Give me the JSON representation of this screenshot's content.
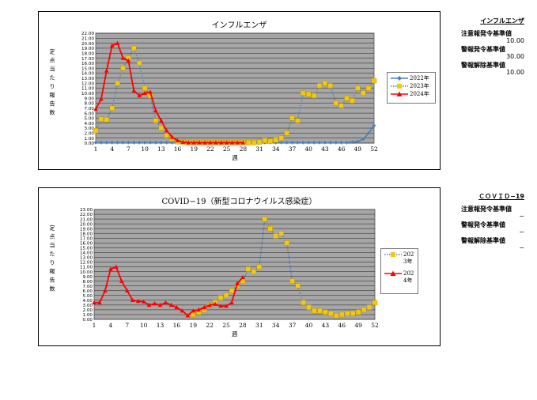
{
  "chart_data": [
    {
      "type": "line",
      "title": "インフルエンザ",
      "xlabel": "週",
      "ylabel": "定点当たり報告数",
      "xlim": [
        1,
        52
      ],
      "ylim": [
        0,
        22
      ],
      "x_ticks": [
        "1",
        "4",
        "7",
        "10",
        "13",
        "16",
        "19",
        "22",
        "25",
        "28",
        "31",
        "34",
        "37",
        "40",
        "43",
        "46",
        "49",
        "52"
      ],
      "y_ticks": [
        "0.00",
        "1.00",
        "2.00",
        "3.00",
        "4.00",
        "5.00",
        "6.00",
        "7.00",
        "8.00",
        "9.00",
        "10.00",
        "11.00",
        "12.00",
        "13.00",
        "14.00",
        "15.00",
        "16.00",
        "17.00",
        "18.00",
        "19.00",
        "20.00",
        "21.00",
        "22.00"
      ],
      "grid": true,
      "legend_position": "right",
      "series": [
        {
          "name": "2022年",
          "color": "#4f81bd",
          "style": "solid",
          "marker": "diamond",
          "values": [
            0.1,
            0.1,
            0.1,
            0.1,
            0.1,
            0.1,
            0.1,
            0.1,
            0.1,
            0.1,
            0.1,
            0.1,
            0.1,
            0.1,
            0.1,
            0.1,
            0.1,
            0.1,
            0.1,
            0.1,
            0.1,
            0.1,
            0.1,
            0.1,
            0.1,
            0.1,
            0.1,
            0.1,
            0.1,
            0.1,
            0.1,
            0.1,
            0.1,
            0.1,
            0.1,
            0.1,
            0.1,
            0.1,
            0.1,
            0.1,
            0.1,
            0.1,
            0.1,
            0.1,
            0.1,
            0.1,
            0.1,
            0.2,
            0.3,
            0.8,
            2.0,
            3.5
          ]
        },
        {
          "name": "2023年",
          "color": "#4f81bd",
          "marker_color": "#f2c811",
          "style": "dotted",
          "marker": "square",
          "values": [
            2.5,
            4.8,
            4.7,
            7.0,
            12.0,
            15.0,
            17.0,
            19.0,
            16.0,
            11.0,
            9.5,
            4.5,
            3.0,
            1.5,
            0.8,
            0.3,
            0.2,
            0.1,
            0.1,
            0.1,
            0.1,
            0.1,
            0.1,
            0.1,
            0.1,
            0.1,
            0.1,
            0.1,
            0.1,
            0.1,
            0.2,
            0.5,
            0.4,
            0.6,
            1.0,
            2.0,
            5.0,
            4.5,
            10.0,
            9.8,
            9.5,
            11.5,
            12.0,
            11.5,
            8.0,
            7.5,
            9.0,
            8.5,
            11.0,
            10.0,
            11.0,
            12.5
          ]
        },
        {
          "name": "2024年",
          "color": "#ff0000",
          "style": "solid",
          "marker": "triangle",
          "values": [
            6.8,
            8.8,
            14.5,
            19.5,
            20.0,
            17.0,
            16.5,
            10.5,
            9.5,
            10.0,
            10.2,
            6.5,
            4.5,
            2.5,
            1.2,
            0.5,
            0.2,
            0.1,
            0.1,
            0.1,
            0.1,
            0.1,
            0.1,
            0.1,
            0.1,
            0.1,
            0.1,
            0.1
          ]
        }
      ]
    },
    {
      "type": "line",
      "title": "COVID−19（新型コロナウイルス感染症）",
      "xlabel": "週",
      "ylabel": "定点当たり報告数",
      "xlim": [
        1,
        52
      ],
      "ylim": [
        0,
        23
      ],
      "x_ticks": [
        "1",
        "4",
        "7",
        "10",
        "13",
        "16",
        "19",
        "22",
        "25",
        "28",
        "31",
        "34",
        "37",
        "40",
        "43",
        "46",
        "49",
        "52"
      ],
      "y_ticks": [
        "0.00",
        "1.00",
        "2.00",
        "3.00",
        "4.00",
        "5.00",
        "6.00",
        "7.00",
        "8.00",
        "9.00",
        "10.00",
        "11.00",
        "12.00",
        "13.00",
        "14.00",
        "15.00",
        "16.00",
        "17.00",
        "18.00",
        "19.00",
        "20.00",
        "21.00",
        "22.00",
        "23.00"
      ],
      "grid": true,
      "legend_position": "right",
      "series": [
        {
          "name": "2023年",
          "color": "#4f81bd",
          "marker_color": "#f2c811",
          "style": "dotted",
          "marker": "square",
          "x_start": 19,
          "values": [
            1.0,
            1.5,
            2.0,
            3.0,
            3.5,
            4.5,
            5.0,
            6.0,
            7.0,
            8.0,
            10.5,
            10.0,
            11.0,
            21.0,
            19.0,
            17.5,
            18.0,
            16.0,
            8.0,
            7.0,
            3.5,
            2.5,
            1.8,
            1.8,
            1.5,
            1.2,
            0.8,
            1.0,
            1.2,
            1.3,
            1.5,
            2.0,
            2.5,
            3.5
          ]
        },
        {
          "name": "2024年",
          "color": "#ff0000",
          "style": "solid",
          "marker": "triangle",
          "x_start": 1,
          "values": [
            3.5,
            3.5,
            6.0,
            10.5,
            11.0,
            8.0,
            6.0,
            4.0,
            3.8,
            3.7,
            3.0,
            3.3,
            3.0,
            3.5,
            3.0,
            2.5,
            1.8,
            0.8,
            1.8,
            2.0,
            2.5,
            3.0,
            3.2,
            2.8,
            2.8,
            3.5,
            7.5,
            8.8
          ]
        }
      ]
    }
  ],
  "info": {
    "flu": {
      "title": "インフルエンザ",
      "items": [
        {
          "label": "注意報発令基準値",
          "value": "10.00"
        },
        {
          "label": "警報発令基準値",
          "value": "30.00"
        },
        {
          "label": "警報解除基準値",
          "value": "10.00"
        }
      ]
    },
    "covid": {
      "title": "ＣＯＶＩＤ−19",
      "items": [
        {
          "label": "注意報発令基準値",
          "value": "−"
        },
        {
          "label": "警報発令基準値",
          "value": "−"
        },
        {
          "label": "警報解除基準値",
          "value": "−"
        }
      ]
    }
  }
}
